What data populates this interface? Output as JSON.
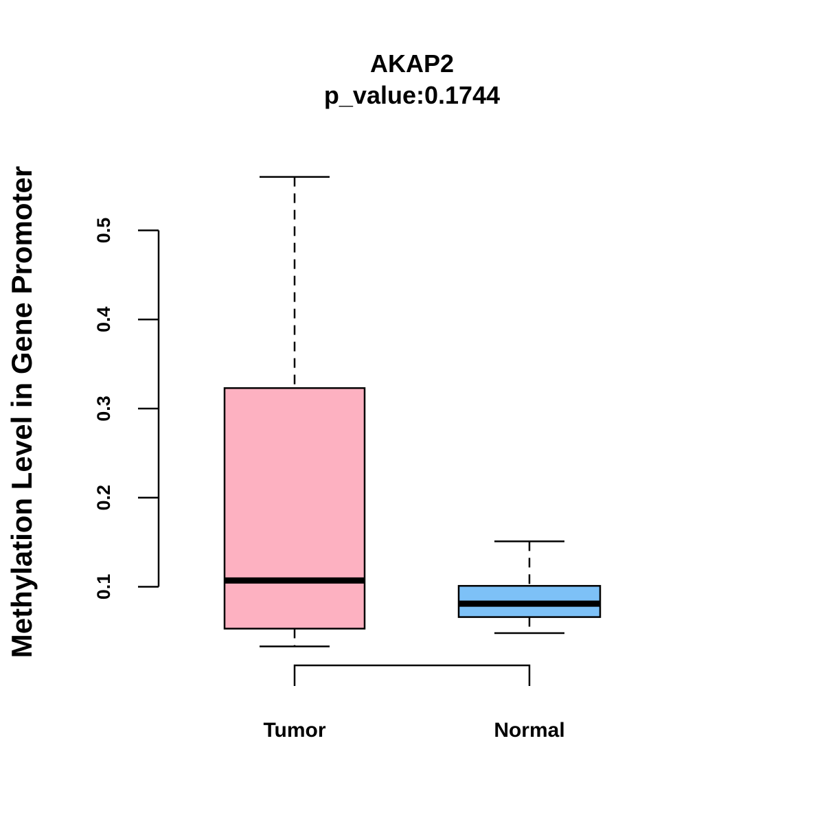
{
  "chart_data": {
    "type": "box",
    "title": "AKAP2",
    "subtitle": "p_value:0.1744",
    "xlabel": "",
    "ylabel": "Methylation Level in Gene Promoter",
    "ylim": [
      0.1,
      0.5
    ],
    "yticks": [
      0.1,
      0.2,
      0.3,
      0.4,
      0.5
    ],
    "ytick_labels": [
      "0.1",
      "0.2",
      "0.3",
      "0.4",
      "0.5"
    ],
    "categories": [
      "Tumor",
      "Normal"
    ],
    "series": [
      {
        "name": "Tumor",
        "whisker_low": 0.033,
        "q1": 0.053,
        "median": 0.107,
        "q3": 0.323,
        "whisker_high": 0.56,
        "color": "#FDB1C1"
      },
      {
        "name": "Normal",
        "whisker_low": 0.048,
        "q1": 0.066,
        "median": 0.081,
        "q3": 0.101,
        "whisker_high": 0.151,
        "color": "#7DC1F7"
      }
    ],
    "comparison_bracket": [
      "Tumor",
      "Normal"
    ],
    "grid": false
  }
}
